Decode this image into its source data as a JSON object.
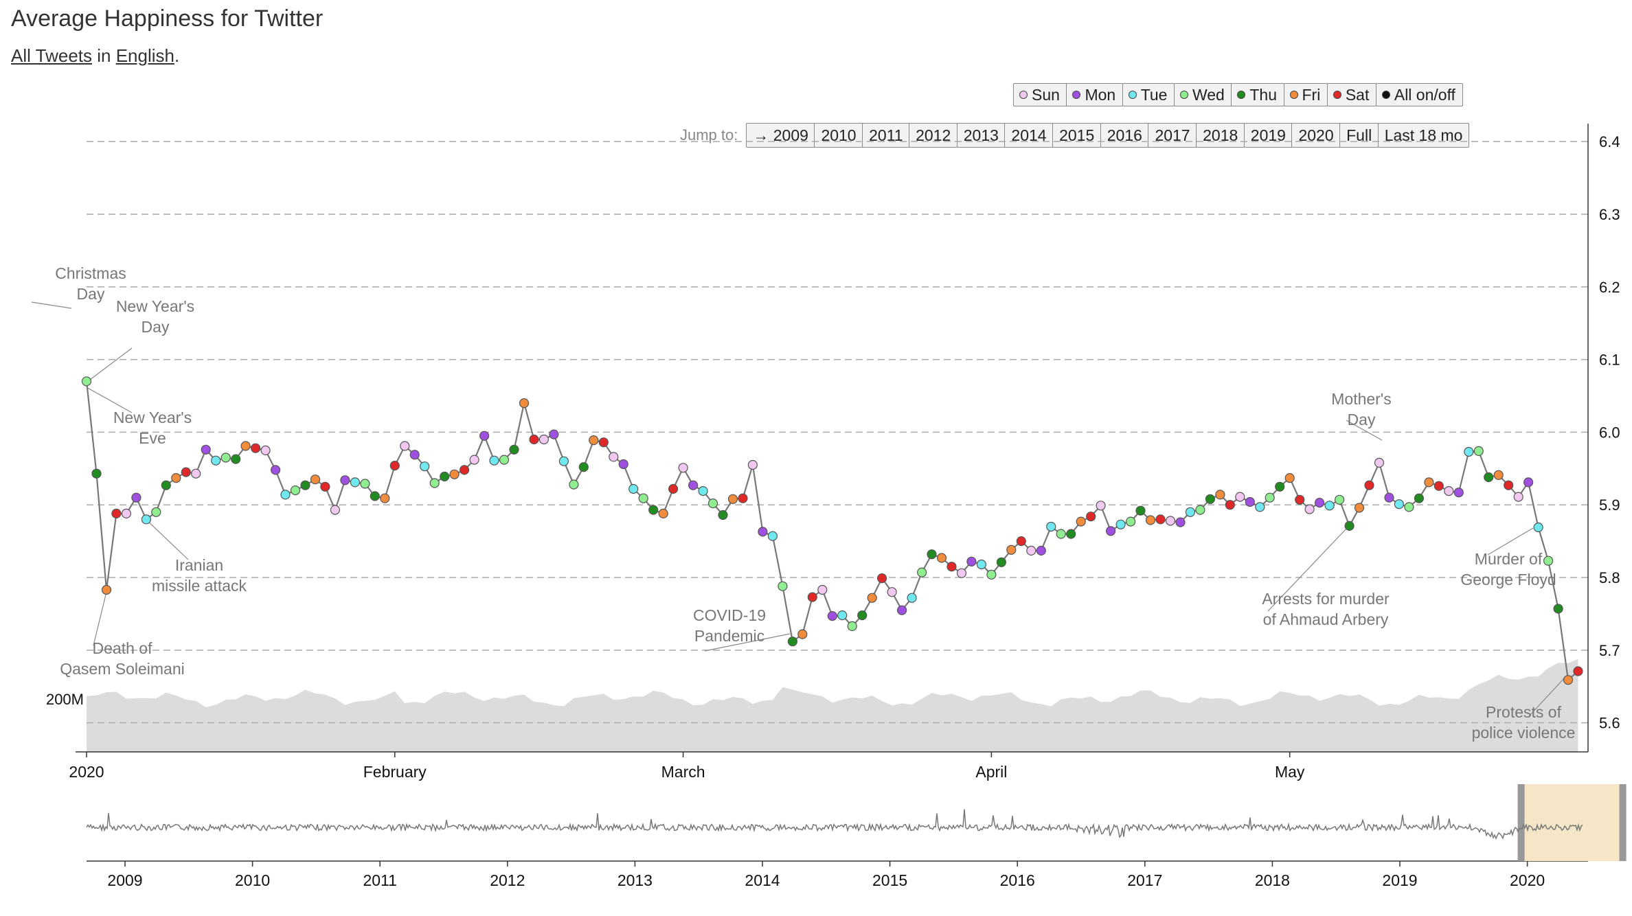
{
  "page": {
    "title": "Average Happiness for Twitter",
    "subtitle": {
      "link1": "All Tweets",
      "mid": " in ",
      "link2": "English",
      "end": "."
    }
  },
  "legend": [
    {
      "label": "Sun",
      "color": "#f0c8f0"
    },
    {
      "label": "Mon",
      "color": "#a050e0"
    },
    {
      "label": "Tue",
      "color": "#70e8f0"
    },
    {
      "label": "Wed",
      "color": "#90ee90"
    },
    {
      "label": "Thu",
      "color": "#228b22"
    },
    {
      "label": "Fri",
      "color": "#f08c3c"
    },
    {
      "label": "Sat",
      "color": "#e02828"
    },
    {
      "label": "All on/off",
      "color": "#111111"
    }
  ],
  "jump": {
    "label": "Jump to:",
    "buttons": [
      "→ 2009",
      "2010",
      "2011",
      "2012",
      "2013",
      "2014",
      "2015",
      "2016",
      "2017",
      "2018",
      "2019",
      "2020",
      "Full",
      "Last 18 mo"
    ]
  },
  "chart_data": {
    "type": "line",
    "title": "Average Happiness for Twitter",
    "ylim": [
      5.56,
      6.42
    ],
    "y_ticks": [
      5.6,
      5.7,
      5.8,
      5.9,
      6.0,
      6.1,
      6.2,
      6.3,
      6.4
    ],
    "y_tick_labels": [
      "5.6",
      "5.7",
      "5.8",
      "5.9",
      "6.0",
      "6.1",
      "6.2",
      "6.3",
      "6.4"
    ],
    "x_range": [
      "2020-01-01",
      "2020-05-31"
    ],
    "x_ticks": [
      {
        "date": "2020-01-01",
        "label": "2020"
      },
      {
        "date": "2020-02-01",
        "label": "February"
      },
      {
        "date": "2020-03-01",
        "label": "March"
      },
      {
        "date": "2020-04-01",
        "label": "April"
      },
      {
        "date": "2020-05-01",
        "label": "May"
      }
    ],
    "grid": "horizontal dashed",
    "day_colors": [
      "#f0c8f0",
      "#a050e0",
      "#70e8f0",
      "#90ee90",
      "#228b22",
      "#f08c3c",
      "#e02828"
    ],
    "start_date": "2020-01-01",
    "start_weekday": 3,
    "values": [
      6.07,
      5.943,
      5.783,
      5.888,
      5.888,
      5.91,
      5.88,
      5.89,
      5.927,
      5.937,
      5.945,
      5.943,
      5.976,
      5.961,
      5.965,
      5.963,
      5.981,
      5.978,
      5.975,
      5.948,
      5.914,
      5.92,
      5.927,
      5.935,
      5.925,
      5.893,
      5.934,
      5.931,
      5.929,
      5.912,
      5.909,
      5.954,
      5.981,
      5.969,
      5.953,
      5.93,
      5.939,
      5.942,
      5.948,
      5.962,
      5.995,
      5.961,
      5.962,
      5.976,
      6.04,
      5.99,
      5.99,
      5.997,
      5.96,
      5.928,
      5.952,
      5.989,
      5.986,
      5.966,
      5.956,
      5.922,
      5.909,
      5.893,
      5.888,
      5.922,
      5.951,
      5.927,
      5.919,
      5.902,
      5.886,
      5.908,
      5.909,
      5.955,
      5.863,
      5.857,
      5.788,
      5.712,
      5.722,
      5.773,
      5.783,
      5.747,
      5.748,
      5.733,
      5.748,
      5.772,
      5.799,
      5.78,
      5.755,
      5.772,
      5.807,
      5.832,
      5.827,
      5.815,
      5.806,
      5.822,
      5.818,
      5.804,
      5.821,
      5.838,
      5.85,
      5.837,
      5.837,
      5.87,
      5.86,
      5.86,
      5.877,
      5.884,
      5.899,
      5.864,
      5.873,
      5.877,
      5.892,
      5.879,
      5.88,
      5.878,
      5.876,
      5.89,
      5.893,
      5.908,
      5.914,
      5.9,
      5.911,
      5.904,
      5.897,
      5.91,
      5.925,
      5.937,
      5.907,
      5.894,
      5.903,
      5.899,
      5.907,
      5.871,
      5.896,
      5.927,
      5.958,
      5.91,
      5.901,
      5.897,
      5.909,
      5.931,
      5.926,
      5.919,
      5.917,
      5.973,
      5.974,
      5.938,
      5.941,
      5.927,
      5.911,
      5.931,
      5.869,
      5.823,
      5.757,
      5.659,
      5.671
    ],
    "volume_label": "200M",
    "annotations": [
      {
        "text": [
          "Christmas",
          "Day"
        ]
      },
      {
        "text": [
          "New Year's",
          "Day"
        ]
      },
      {
        "text": [
          "New Year's",
          "Eve"
        ]
      },
      {
        "text": [
          "Iranian",
          "missile attack"
        ]
      },
      {
        "text": [
          "Death of",
          "Qasem Soleimani"
        ]
      },
      {
        "text": [
          "COVID-19",
          "Pandemic"
        ]
      },
      {
        "text": [
          "Mother's",
          "Day"
        ]
      },
      {
        "text": [
          "Arrests for murder",
          "of Ahmaud Arbery"
        ]
      },
      {
        "text": [
          "Murder of",
          "George Floyd"
        ]
      },
      {
        "text": [
          "Protests of",
          "police violence"
        ]
      }
    ],
    "overview": {
      "x_ticks": [
        "2009",
        "2010",
        "2011",
        "2012",
        "2013",
        "2014",
        "2015",
        "2016",
        "2017",
        "2018",
        "2019",
        "2020"
      ],
      "selected": [
        "2020-01-01",
        "2020-05-31"
      ]
    }
  }
}
